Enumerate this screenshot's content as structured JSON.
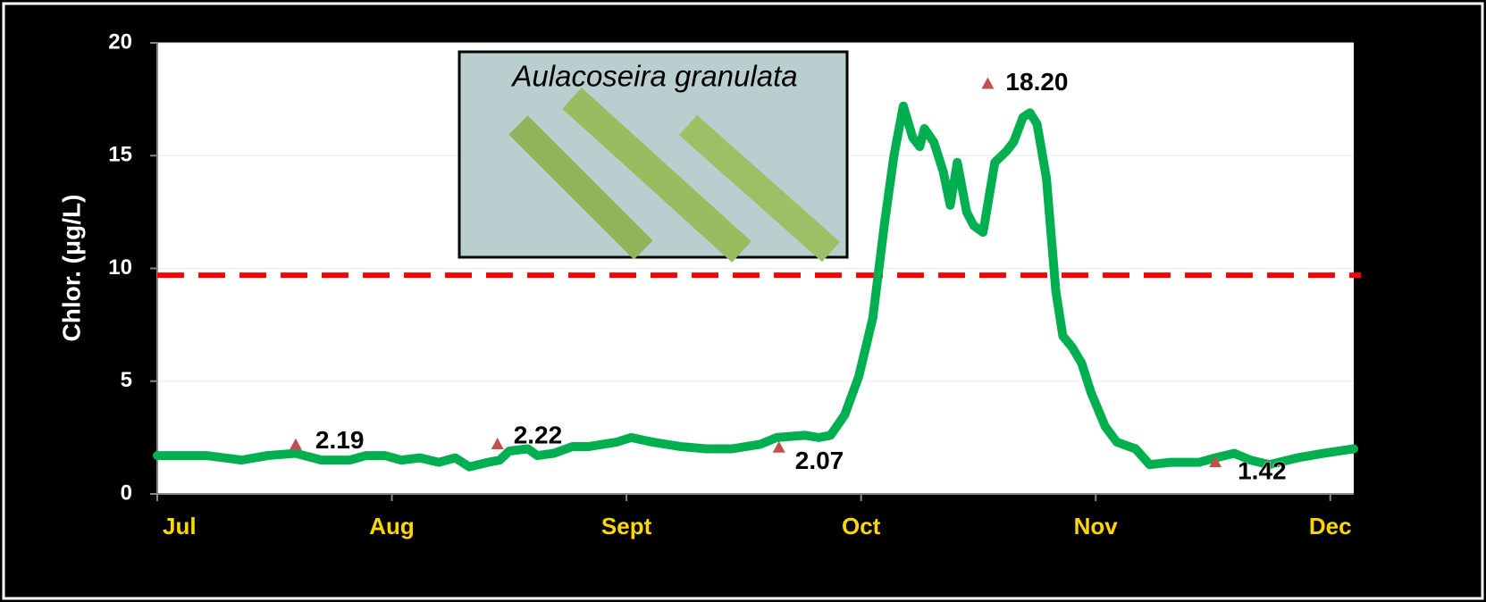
{
  "chart_data": {
    "type": "line",
    "y_label": "Chlor. (μg/L)",
    "inset_label": "Aulacoseira granulata",
    "categories": [
      "Jul",
      "Aug",
      "Sept",
      "Oct",
      "Nov",
      "Dec"
    ],
    "xlim": [
      0,
      5.1
    ],
    "ylim": [
      0,
      20
    ],
    "yticks": [
      0,
      5,
      10,
      15,
      20
    ],
    "grid": true,
    "reference_line": {
      "value": 9.7,
      "color": "#ff0000"
    },
    "series": [
      {
        "color": "#00b050",
        "x": [
          0,
          0.21,
          0.36,
          0.47,
          0.59,
          0.7,
          0.82,
          0.89,
          0.97,
          1.04,
          1.12,
          1.2,
          1.27,
          1.33,
          1.41,
          1.46,
          1.5,
          1.58,
          1.62,
          1.69,
          1.77,
          1.84,
          1.96,
          2.02,
          2.11,
          2.23,
          2.34,
          2.45,
          2.57,
          2.64,
          2.76,
          2.82,
          2.87,
          2.93,
          2.99,
          3.05,
          3.1,
          3.14,
          3.18,
          3.22,
          3.25,
          3.27,
          3.31,
          3.35,
          3.38,
          3.41,
          3.45,
          3.48,
          3.52,
          3.57,
          3.62,
          3.65,
          3.69,
          3.72,
          3.75,
          3.79,
          3.83,
          3.86,
          3.9,
          3.94,
          3.98,
          4.04,
          4.09,
          4.17,
          4.23,
          4.32,
          4.44,
          4.51,
          4.59,
          4.66,
          4.74,
          4.86,
          4.97,
          5.1
        ],
        "values": [
          1.7,
          1.7,
          1.5,
          1.7,
          1.8,
          1.5,
          1.5,
          1.7,
          1.7,
          1.5,
          1.6,
          1.4,
          1.6,
          1.2,
          1.4,
          1.5,
          1.9,
          2.0,
          1.7,
          1.8,
          2.1,
          2.1,
          2.3,
          2.5,
          2.3,
          2.1,
          2.0,
          2.0,
          2.2,
          2.5,
          2.6,
          2.5,
          2.6,
          3.5,
          5.2,
          7.8,
          12.0,
          15.0,
          17.2,
          15.8,
          15.4,
          16.2,
          15.6,
          14.3,
          12.8,
          14.7,
          12.5,
          11.9,
          11.6,
          14.7,
          15.2,
          15.6,
          16.7,
          16.9,
          16.4,
          14.0,
          9.0,
          7.0,
          6.5,
          5.8,
          4.5,
          3.0,
          2.3,
          2.0,
          1.3,
          1.4,
          1.4,
          1.6,
          1.8,
          1.5,
          1.3,
          1.6,
          1.8,
          2.0
        ]
      },
      {
        "color": "#c0504d",
        "marker": "triangle",
        "x": [
          0.59,
          1.45,
          2.65,
          3.54,
          4.51
        ],
        "values": [
          2.19,
          2.22,
          2.07,
          18.2,
          1.42
        ],
        "value_labels": [
          "2.19",
          "2.22",
          "2.07",
          "18.20",
          "1.42"
        ]
      }
    ]
  }
}
